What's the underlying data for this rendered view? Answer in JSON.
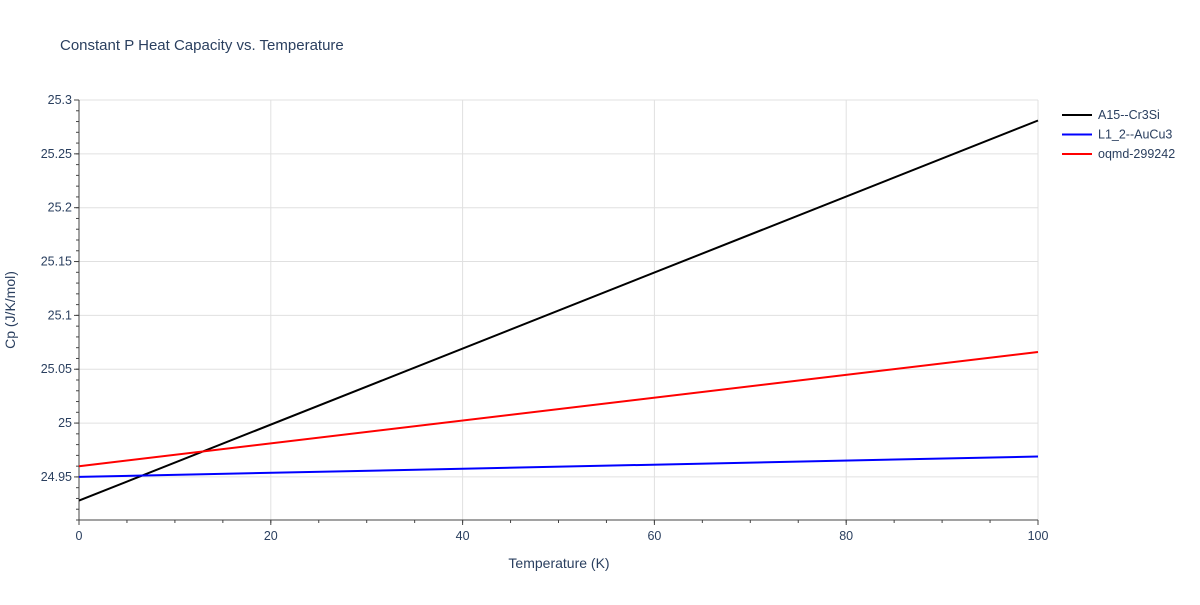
{
  "chart_data": {
    "type": "line",
    "title": "Constant P Heat Capacity vs. Temperature",
    "xlabel": "Temperature (K)",
    "ylabel": "Cp (J/K/mol)",
    "xlim": [
      0,
      100
    ],
    "ylim": [
      24.91,
      25.3
    ],
    "xticks": [
      0,
      20,
      40,
      60,
      80,
      100
    ],
    "xtick_labels": [
      "0",
      "20",
      "40",
      "60",
      "80",
      "100"
    ],
    "yticks": [
      24.95,
      25.0,
      25.05,
      25.1,
      25.15,
      25.2,
      25.25,
      25.3
    ],
    "ytick_labels": [
      "24.95",
      "25",
      "25.05",
      "25.1",
      "25.15",
      "25.2",
      "25.25",
      "25.3"
    ],
    "grid": true,
    "legend_position": "top-right",
    "series": [
      {
        "name": "A15--Cr3Si",
        "color": "#000000",
        "x": [
          0,
          100
        ],
        "y": [
          24.928,
          25.281
        ]
      },
      {
        "name": "L1_2--AuCu3",
        "color": "#0000ff",
        "x": [
          0,
          100
        ],
        "y": [
          24.95,
          24.969
        ]
      },
      {
        "name": "oqmd-299242",
        "color": "#ff0000",
        "x": [
          0,
          100
        ],
        "y": [
          24.96,
          25.066
        ]
      }
    ]
  }
}
